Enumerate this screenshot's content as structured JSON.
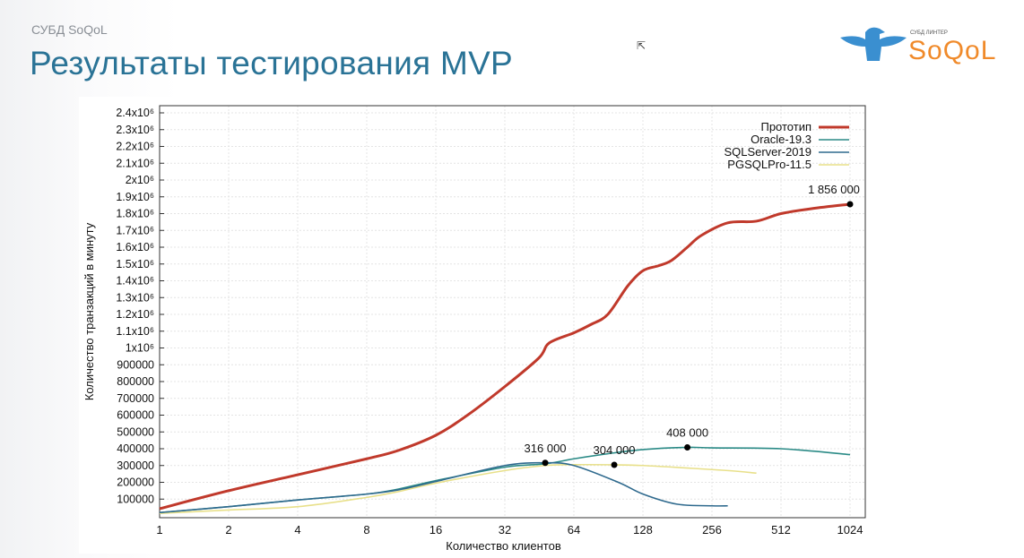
{
  "slide": {
    "subtitle": "СУБД SoQoL",
    "title": "Результаты тестирования MVP",
    "logo": {
      "brand": "SoQoL",
      "tagline": "СУБД ЛИНТЕР"
    }
  },
  "chart_data": {
    "type": "line",
    "title": "",
    "xlabel": "Количество клиентов",
    "ylabel": "Количество транзакций в минуту",
    "xscale": "log2",
    "xlim": [
      1,
      1024
    ],
    "ylim": [
      0,
      2400000
    ],
    "x_ticks": [
      1,
      2,
      4,
      8,
      16,
      32,
      64,
      128,
      256,
      512,
      1024
    ],
    "x_tick_labels": [
      "1",
      "2",
      "4",
      "8",
      "16",
      "32",
      "64",
      "128",
      "256",
      "512",
      "1024"
    ],
    "y_ticks": [
      100000,
      200000,
      300000,
      400000,
      500000,
      600000,
      700000,
      800000,
      900000,
      1000000,
      1100000,
      1200000,
      1300000,
      1400000,
      1500000,
      1600000,
      1700000,
      1800000,
      1900000,
      2000000,
      2100000,
      2200000,
      2300000,
      2400000
    ],
    "y_tick_labels": [
      "100000",
      "200000",
      "300000",
      "400000",
      "500000",
      "600000",
      "700000",
      "800000",
      "900000",
      "1x10⁶",
      "1.1x10⁶",
      "1.2x10⁶",
      "1.3x10⁶",
      "1.4x10⁶",
      "1.5x10⁶",
      "1.6x10⁶",
      "1.7x10⁶",
      "1.8x10⁶",
      "1.9x10⁶",
      "2x10⁶",
      "2.1x10⁶",
      "2.2x10⁶",
      "2.3x10⁶",
      "2.4x10⁶"
    ],
    "grid": true,
    "legend_position": "top-right",
    "series": [
      {
        "name": "Прототип",
        "color": "#c0392b",
        "width": 3,
        "x": [
          1,
          2,
          4,
          8,
          11,
          16,
          22,
          32,
          45,
          50,
          64,
          76,
          90,
          110,
          128,
          150,
          170,
          200,
          230,
          300,
          400,
          512,
          700,
          1024
        ],
        "y": [
          43000,
          150000,
          245000,
          340000,
          390000,
          480000,
          600000,
          770000,
          940000,
          1030000,
          1090000,
          1140000,
          1200000,
          1370000,
          1460000,
          1490000,
          1520000,
          1600000,
          1670000,
          1745000,
          1755000,
          1800000,
          1830000,
          1856000
        ]
      },
      {
        "name": "Oracle-19.3",
        "color": "#2a8a86",
        "width": 1.6,
        "x": [
          1,
          2,
          4,
          8,
          11,
          16,
          32,
          48,
          64,
          90,
          128,
          200,
          256,
          512,
          1024
        ],
        "y": [
          20000,
          55000,
          95000,
          130000,
          160000,
          210000,
          290000,
          310000,
          340000,
          370000,
          395000,
          408000,
          405000,
          400000,
          365000
        ]
      },
      {
        "name": "SQLServer-2019",
        "color": "#2f6a8e",
        "width": 1.6,
        "x": [
          1,
          2,
          4,
          8,
          11,
          16,
          32,
          48,
          64,
          100,
          128,
          180,
          256,
          300
        ],
        "y": [
          20000,
          55000,
          95000,
          130000,
          155000,
          205000,
          300000,
          316000,
          300000,
          200000,
          130000,
          70000,
          60000,
          60000
        ]
      },
      {
        "name": "PGSQLPro-11.5",
        "color": "#e8e08a",
        "width": 1.6,
        "x": [
          1,
          2,
          4,
          8,
          11,
          16,
          32,
          48,
          64,
          96,
          128,
          200,
          300,
          400
        ],
        "y": [
          15000,
          35000,
          55000,
          110000,
          145000,
          195000,
          270000,
          300000,
          305000,
          304000,
          300000,
          285000,
          270000,
          255000
        ]
      }
    ],
    "annotations": [
      {
        "x": 48,
        "y": 316000,
        "label": "316 000"
      },
      {
        "x": 96,
        "y": 304000,
        "label": "304 000"
      },
      {
        "x": 200,
        "y": 408000,
        "label": "408 000"
      },
      {
        "x": 1024,
        "y": 1856000,
        "label": "1 856 000"
      }
    ]
  }
}
